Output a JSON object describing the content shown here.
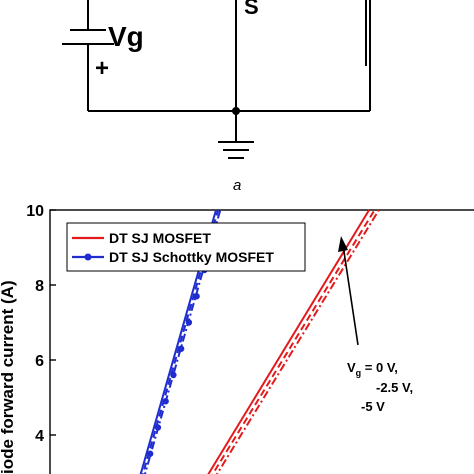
{
  "circuit": {
    "gate_source_label": "Vg",
    "plus_sign": "+",
    "source_label": "S",
    "panel_label": "a"
  },
  "colors": {
    "red": "#e31a1c",
    "blue": "#1f2ccf",
    "black": "#000000"
  },
  "chart_data": {
    "type": "line",
    "ylabel": "iode forward current (A)",
    "ylim": [
      2.8,
      10
    ],
    "yticks": [
      4,
      6,
      8,
      10
    ],
    "xlabel": "",
    "xlim": [
      0,
      10
    ],
    "legend": {
      "placement": "top-left",
      "entries": [
        {
          "label": "DT SJ MOSFET",
          "color": "#e31a1c",
          "marker": "none"
        },
        {
          "label": "DT SJ Schottky MOSFET",
          "color": "#1f2ccf",
          "marker": "circle"
        }
      ]
    },
    "annotation": {
      "line1_prefix": "V",
      "line1_sub": "g",
      "line1_suffix": " = 0 V,",
      "line2": "-2.5 V,",
      "line3": "-5 V"
    },
    "series": [
      {
        "name": "DT SJ MOSFET",
        "color": "#e31a1c",
        "dash": "solid",
        "x": [
          3.6,
          7.42
        ],
        "y": [
          2.8,
          10
        ]
      },
      {
        "name": "DT SJ MOSFET",
        "color": "#e31a1c",
        "dash": "dashed",
        "x": [
          3.7,
          7.55
        ],
        "y": [
          2.8,
          10
        ]
      },
      {
        "name": "DT SJ MOSFET",
        "color": "#e31a1c",
        "dash": "dashdot",
        "x": [
          3.8,
          7.65
        ],
        "y": [
          2.8,
          10
        ]
      },
      {
        "name": "DT SJ Schottky MOSFET",
        "color": "#1f2ccf",
        "dash": "solid",
        "x": [
          2.07,
          3.86
        ],
        "y": [
          2.8,
          10
        ]
      },
      {
        "name": "DT SJ Schottky MOSFET",
        "color": "#1f2ccf",
        "dash": "dashed",
        "x": [
          2.12,
          3.91
        ],
        "y": [
          2.8,
          10
        ]
      },
      {
        "name": "DT SJ Schottky MOSFET",
        "color": "#1f2ccf",
        "dash": "dashdot",
        "x": [
          2.17,
          3.96
        ],
        "y": [
          2.8,
          10
        ]
      }
    ],
    "markers": {
      "color": "#1f2ccf",
      "x": [
        2.15,
        2.33,
        2.51,
        2.69,
        2.87,
        3.05,
        3.23,
        3.41,
        3.59,
        3.77
      ],
      "y": [
        2.8,
        3.5,
        4.2,
        4.9,
        5.6,
        6.3,
        7.0,
        7.7,
        8.4,
        9.1
      ]
    }
  }
}
